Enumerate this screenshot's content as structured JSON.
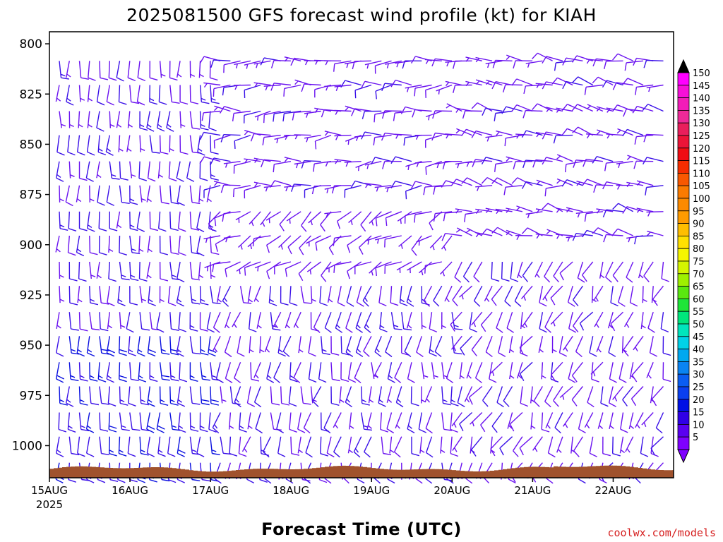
{
  "chart_data": {
    "type": "wind-barb-time-height",
    "title": "2025081500 GFS forecast wind profile (kt) for KIAH",
    "xlabel": "Forecast Time (UTC)",
    "credit": "coolwx.com/models",
    "x_ticks": [
      {
        "t": 0,
        "label": "15AUG",
        "sublabel": "2025"
      },
      {
        "t": 24,
        "label": "16AUG",
        "sublabel": ""
      },
      {
        "t": 48,
        "label": "17AUG",
        "sublabel": ""
      },
      {
        "t": 72,
        "label": "18AUG",
        "sublabel": ""
      },
      {
        "t": 96,
        "label": "19AUG",
        "sublabel": ""
      },
      {
        "t": 120,
        "label": "20AUG",
        "sublabel": ""
      },
      {
        "t": 144,
        "label": "21AUG",
        "sublabel": ""
      },
      {
        "t": 168,
        "label": "22AUG",
        "sublabel": ""
      }
    ],
    "xlim_hours": [
      0,
      186
    ],
    "y_axis": "pressure (hPa), reversed",
    "ylim": [
      1016,
      794
    ],
    "y_ticks": [
      "800",
      "825",
      "850",
      "875",
      "900",
      "925",
      "950",
      "975",
      "1000"
    ],
    "pressure_levels": [
      805,
      817,
      830,
      842,
      855,
      867,
      880,
      892,
      905,
      917,
      930,
      942,
      955,
      967,
      980,
      992,
      1005
    ],
    "time_step_hours": 3,
    "times_hours_first_segment": [
      0,
      3,
      6,
      9,
      12,
      15,
      18,
      21,
      24,
      27,
      30,
      33,
      36,
      39,
      42,
      45
    ],
    "times_hours_second_segment": [
      48,
      51,
      54,
      57,
      60,
      63,
      66,
      69,
      72,
      75,
      78,
      81,
      84,
      87,
      90,
      93,
      96,
      99,
      102,
      105,
      108,
      111,
      114,
      117,
      120,
      123,
      126,
      129,
      132,
      135,
      138,
      141,
      144,
      147,
      150,
      153,
      156,
      159,
      162,
      165,
      168,
      171,
      174,
      177,
      180,
      183,
      186
    ],
    "wind_regimes": [
      {
        "period": "15AUG 00Z – 17AUG 00Z",
        "layer": "800–1000 hPa",
        "direction_deg": 180,
        "speed_kt_range": [
          5,
          20
        ]
      },
      {
        "period": "17AUG – 20AUG",
        "layer": "800–875 hPa",
        "direction_deg": 270,
        "speed_kt_range": [
          5,
          10
        ]
      },
      {
        "period": "17AUG – 20AUG",
        "layer": "900–1000 hPa",
        "direction_deg": 190,
        "speed_kt_range": [
          5,
          15
        ]
      },
      {
        "period": "20AUG – 22AUG",
        "layer": "800–900 hPa",
        "direction_deg": 280,
        "speed_kt_range": [
          5,
          10
        ]
      },
      {
        "period": "20AUG – 22AUG",
        "layer": "900–1000 hPa",
        "direction_deg": 200,
        "speed_kt_range": [
          5,
          10
        ]
      }
    ],
    "colorbar": {
      "levels": [
        "150",
        "145",
        "140",
        "135",
        "130",
        "125",
        "120",
        "115",
        "110",
        "105",
        "100",
        "95",
        "90",
        "85",
        "80",
        "75",
        "70",
        "65",
        "60",
        "55",
        "50",
        "45",
        "40",
        "35",
        "30",
        "25",
        "20",
        "15",
        "10",
        "5"
      ],
      "colors": [
        "#ff00ff",
        "#f70fd8",
        "#f21cb8",
        "#ee2a98",
        "#e91f5c",
        "#ec1438",
        "#f00d13",
        "#f52d00",
        "#f85800",
        "#fb7b00",
        "#fc8a00",
        "#ff9b00",
        "#ffbe00",
        "#ffe000",
        "#f5f500",
        "#d5f500",
        "#9ef000",
        "#5ae810",
        "#1ee638",
        "#00e67c",
        "#00e6bc",
        "#00d2e8",
        "#00a8f0",
        "#0a84f2",
        "#0a5df2",
        "#0a3ff0",
        "#0010e6",
        "#3000e6",
        "#5a00f0",
        "#7f00ff"
      ],
      "top_arrow_color": "#000000",
      "bottom_arrow_color": "#7f00ff"
    },
    "terrain_color": "#a0522d"
  }
}
